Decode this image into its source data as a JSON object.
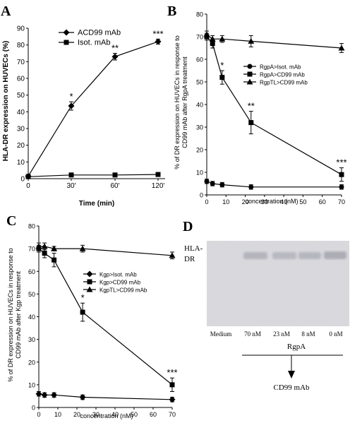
{
  "panels": [
    {
      "letter": "A",
      "ylabel": "HLA-DR expression on HUVECs (%)",
      "xlabel": "Time (min)",
      "ylim": [
        0,
        90
      ],
      "yticks": [
        0,
        10,
        20,
        30,
        40,
        50,
        60,
        70,
        80,
        90
      ],
      "xticks": [
        "0",
        "30'",
        "60'",
        "120'"
      ]
    },
    {
      "letter": "B",
      "ylabel_line1": "% of DR expression on HUVECs in response to",
      "ylabel_line2": "CD99 mAb after RgpA treatment",
      "xlabel": "concentration (nM)",
      "ylim": [
        0,
        80
      ],
      "yticks": [
        0,
        10,
        20,
        30,
        40,
        50,
        60,
        70,
        80
      ],
      "xticks": [
        0,
        10,
        20,
        30,
        40,
        50,
        60,
        70
      ]
    },
    {
      "letter": "C",
      "ylabel_line1": "% of DR expression on HUVECs in response to",
      "ylabel_line2": "CD99 mAb after Kgp treatment",
      "xlabel": "concentration (nM)",
      "ylim": [
        0,
        80
      ],
      "yticks": [
        0,
        10,
        20,
        30,
        40,
        50,
        60,
        70,
        80
      ],
      "xticks": [
        0,
        10,
        20,
        30,
        40,
        50,
        60,
        70
      ]
    },
    {
      "letter": "D",
      "band_label_line1": "HLA-",
      "band_label_line2": "DR",
      "lanes": [
        "Medium",
        "70 nM",
        "23 nM",
        "8 nM",
        "0 nM"
      ],
      "group_label": "RgpA",
      "arrow_target": "CD99 mAb"
    }
  ],
  "chart_data": [
    {
      "type": "line",
      "categories": [
        "0",
        "30'",
        "60'",
        "120'"
      ],
      "series": [
        {
          "name": "ACD99 mAb",
          "marker": "diamond",
          "values": [
            1.5,
            43.5,
            73,
            82
          ],
          "errors": [
            1,
            2.5,
            2,
            1.5
          ]
        },
        {
          "name": "Isot. mAb",
          "marker": "square",
          "values": [
            1.2,
            2.2,
            2.2,
            2.5
          ],
          "errors": [
            0.5,
            0.5,
            0.5,
            0.5
          ]
        }
      ],
      "annotations": [
        {
          "category": "30'",
          "text": "*"
        },
        {
          "category": "60'",
          "text": "**"
        },
        {
          "category": "120'",
          "text": "***"
        }
      ],
      "xlabel": "Time (min)",
      "ylabel": "HLA-DR expression on HUVECs (%)",
      "ylim": [
        0,
        90
      ]
    },
    {
      "type": "line",
      "xlim": [
        0,
        70
      ],
      "ylim": [
        0,
        80
      ],
      "series": [
        {
          "name": "RgpA>Isot. mAb",
          "marker": "circle",
          "points": [
            [
              0,
              6
            ],
            [
              3,
              5
            ],
            [
              8,
              4.5
            ],
            [
              23,
              3.5
            ],
            [
              70,
              3.5
            ]
          ],
          "errors": [
            1,
            1,
            1,
            1,
            1
          ]
        },
        {
          "name": "RgpA>CD99 mAb",
          "marker": "square",
          "points": [
            [
              0,
              70
            ],
            [
              3,
              67
            ],
            [
              8,
              52
            ],
            [
              23,
              32
            ],
            [
              70,
              9
            ]
          ],
          "errors": [
            1.5,
            2,
            3,
            5,
            3
          ]
        },
        {
          "name": "RgpTL>CD99 mAb",
          "marker": "triangle",
          "points": [
            [
              0,
              71
            ],
            [
              3,
              69
            ],
            [
              8,
              69
            ],
            [
              23,
              68
            ],
            [
              70,
              65
            ]
          ],
          "errors": [
            1.5,
            1.5,
            1.5,
            2.5,
            2
          ]
        }
      ],
      "annotations": [
        {
          "x": 8,
          "text": "*"
        },
        {
          "x": 23,
          "text": "**"
        },
        {
          "x": 70,
          "text": "***"
        }
      ],
      "xlabel": "concentration (nM)",
      "ylabel": "% of DR expression on HUVECs in response to CD99 mAb after RgpA treatment"
    },
    {
      "type": "line",
      "xlim": [
        0,
        70
      ],
      "ylim": [
        0,
        80
      ],
      "series": [
        {
          "name": "Kgp>Isot. mAb",
          "marker": "diamond",
          "points": [
            [
              0,
              6
            ],
            [
              3,
              5.5
            ],
            [
              8,
              5.5
            ],
            [
              23,
              4.5
            ],
            [
              70,
              3.5
            ]
          ],
          "errors": [
            1,
            1,
            1,
            1,
            1
          ]
        },
        {
          "name": "Kgp>CD99 mAb",
          "marker": "square",
          "points": [
            [
              0,
              70
            ],
            [
              3,
              68
            ],
            [
              8,
              65
            ],
            [
              23,
              42
            ],
            [
              70,
              10
            ]
          ],
          "errors": [
            1.5,
            2,
            3,
            4,
            3
          ]
        },
        {
          "name": "KgpTL>CD99 mAb",
          "marker": "triangle",
          "points": [
            [
              0,
              71
            ],
            [
              3,
              71
            ],
            [
              8,
              70
            ],
            [
              23,
              70
            ],
            [
              70,
              67
            ]
          ],
          "errors": [
            1.5,
            1.5,
            1,
            1.5,
            1.5
          ]
        }
      ],
      "annotations": [
        {
          "x": 23,
          "text": "*"
        },
        {
          "x": 70,
          "text": "***"
        }
      ],
      "xlabel": "concentration (nM)",
      "ylabel": "% of DR expression on HUVECs in response to CD99 mAb after Kgp treatment"
    }
  ]
}
